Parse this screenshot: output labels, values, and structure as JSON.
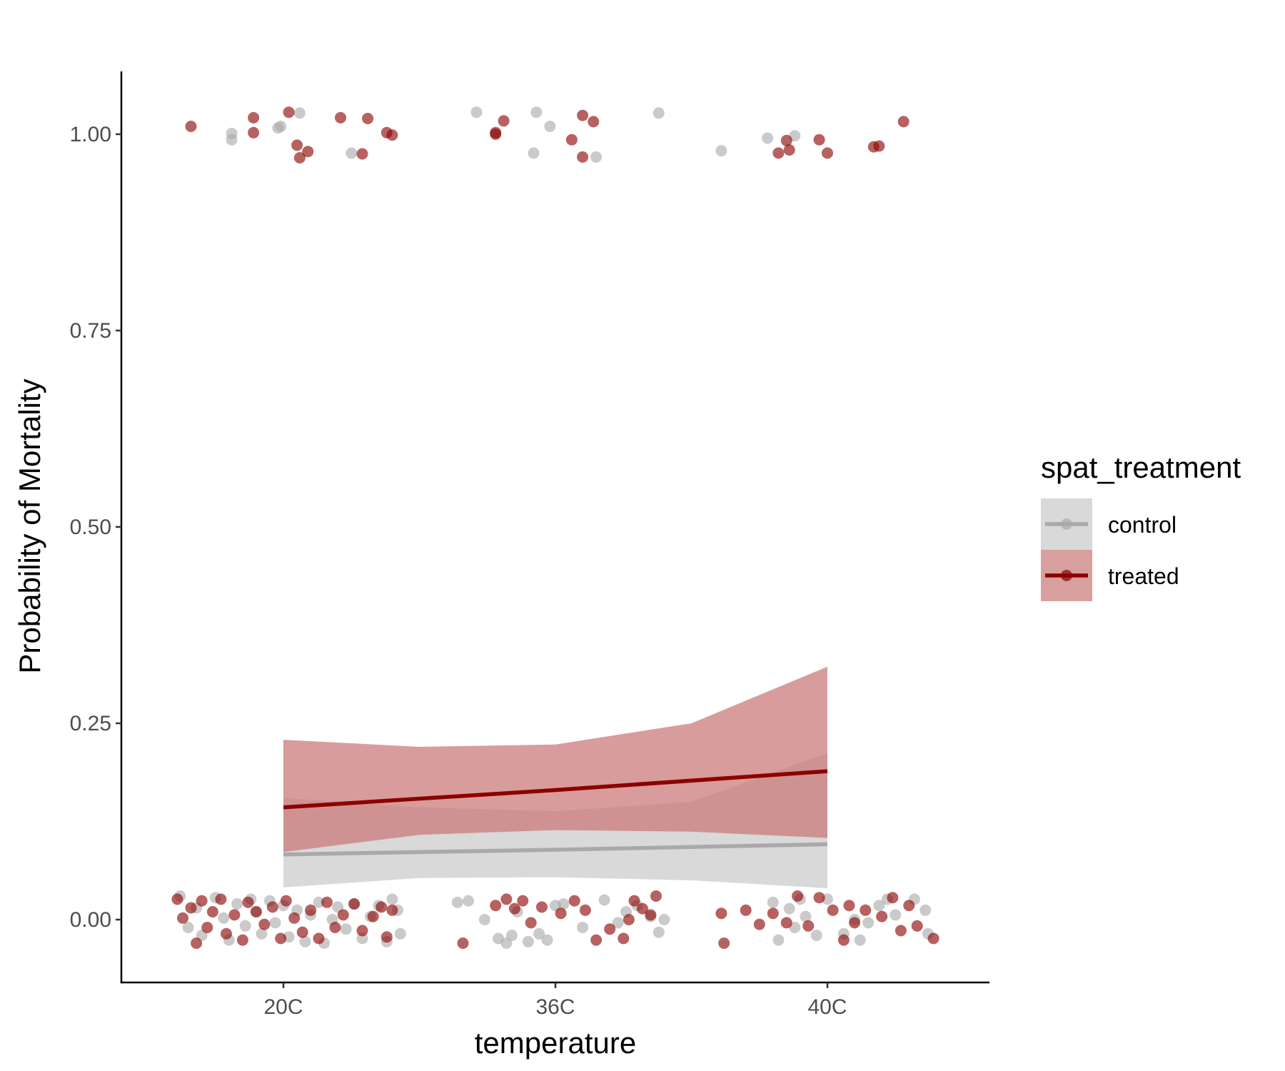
{
  "chart_data": {
    "type": "scatter",
    "xlabel": "temperature",
    "ylabel": "Probability of Mortality",
    "categories": [
      "20C",
      "36C",
      "40C"
    ],
    "ylim": [
      -0.08,
      1.08
    ],
    "yticks": [
      "0.00",
      "0.25",
      "0.50",
      "0.75",
      "1.00"
    ],
    "ytick_values": [
      0,
      0.25,
      0.5,
      0.75,
      1.0
    ],
    "grid": false,
    "legend": {
      "title": "spat_treatment",
      "placement": "right"
    },
    "series": [
      {
        "name": "control",
        "color": "#a9a9a9",
        "ribbon_color": "#d9d9d9",
        "fit": {
          "x": [
            1,
            2,
            3
          ],
          "y": [
            0.083,
            0.089,
            0.096
          ]
        },
        "ribbon": {
          "x": [
            1,
            1.5,
            2,
            2.5,
            3
          ],
          "lower": [
            0.041,
            0.053,
            0.054,
            0.05,
            0.04
          ],
          "upper": [
            0.155,
            0.143,
            0.138,
            0.15,
            0.212
          ]
        },
        "points": [
          {
            "x": 0.81,
            "y": 0.993
          },
          {
            "x": 0.81,
            "y": 1.001
          },
          {
            "x": 0.99,
            "y": 1.01
          },
          {
            "x": 0.98,
            "y": 1.008
          },
          {
            "x": 1.06,
            "y": 1.027
          },
          {
            "x": 1.25,
            "y": 0.976
          },
          {
            "x": 1.71,
            "y": 1.028
          },
          {
            "x": 1.93,
            "y": 1.028
          },
          {
            "x": 1.98,
            "y": 1.01
          },
          {
            "x": 1.92,
            "y": 0.976
          },
          {
            "x": 2.15,
            "y": 0.971
          },
          {
            "x": 2.38,
            "y": 1.027
          },
          {
            "x": 2.61,
            "y": 0.979
          },
          {
            "x": 2.78,
            "y": 0.995
          },
          {
            "x": 2.88,
            "y": 0.998
          },
          {
            "x": 0.62,
            "y": 0.03
          },
          {
            "x": 0.65,
            "y": -0.01
          },
          {
            "x": 0.68,
            "y": 0.015
          },
          {
            "x": 0.7,
            "y": -0.02
          },
          {
            "x": 0.75,
            "y": 0.028
          },
          {
            "x": 0.78,
            "y": 0.002
          },
          {
            "x": 0.8,
            "y": -0.026
          },
          {
            "x": 0.83,
            "y": 0.02
          },
          {
            "x": 0.86,
            "y": -0.008
          },
          {
            "x": 0.88,
            "y": 0.026
          },
          {
            "x": 0.9,
            "y": 0.01
          },
          {
            "x": 0.92,
            "y": -0.018
          },
          {
            "x": 0.95,
            "y": 0.024
          },
          {
            "x": 0.97,
            "y": -0.004
          },
          {
            "x": 1.0,
            "y": 0.018
          },
          {
            "x": 1.02,
            "y": -0.022
          },
          {
            "x": 1.05,
            "y": 0.012
          },
          {
            "x": 1.08,
            "y": -0.028
          },
          {
            "x": 1.1,
            "y": 0.006
          },
          {
            "x": 1.13,
            "y": 0.022
          },
          {
            "x": 1.15,
            "y": -0.03
          },
          {
            "x": 1.18,
            "y": 0.0
          },
          {
            "x": 1.2,
            "y": 0.016
          },
          {
            "x": 1.23,
            "y": -0.012
          },
          {
            "x": 1.26,
            "y": 0.02
          },
          {
            "x": 1.29,
            "y": -0.024
          },
          {
            "x": 1.32,
            "y": 0.004
          },
          {
            "x": 1.35,
            "y": 0.018
          },
          {
            "x": 1.38,
            "y": -0.028
          },
          {
            "x": 1.4,
            "y": 0.026
          },
          {
            "x": 1.42,
            "y": 0.012
          },
          {
            "x": 1.43,
            "y": -0.018
          },
          {
            "x": 1.64,
            "y": 0.022
          },
          {
            "x": 1.68,
            "y": 0.024
          },
          {
            "x": 1.74,
            "y": 0.0
          },
          {
            "x": 1.79,
            "y": -0.024
          },
          {
            "x": 1.82,
            "y": -0.03
          },
          {
            "x": 1.84,
            "y": -0.02
          },
          {
            "x": 1.86,
            "y": 0.01
          },
          {
            "x": 1.9,
            "y": -0.028
          },
          {
            "x": 1.94,
            "y": -0.018
          },
          {
            "x": 1.97,
            "y": -0.026
          },
          {
            "x": 2.0,
            "y": 0.018
          },
          {
            "x": 2.03,
            "y": 0.02
          },
          {
            "x": 2.1,
            "y": -0.01
          },
          {
            "x": 2.18,
            "y": 0.025
          },
          {
            "x": 2.23,
            "y": -0.004
          },
          {
            "x": 2.26,
            "y": 0.01
          },
          {
            "x": 2.3,
            "y": 0.018
          },
          {
            "x": 2.35,
            "y": 0.004
          },
          {
            "x": 2.38,
            "y": -0.016
          },
          {
            "x": 2.4,
            "y": 0.0
          },
          {
            "x": 2.8,
            "y": 0.022
          },
          {
            "x": 2.82,
            "y": -0.026
          },
          {
            "x": 2.86,
            "y": 0.014
          },
          {
            "x": 2.88,
            "y": -0.01
          },
          {
            "x": 2.9,
            "y": 0.026
          },
          {
            "x": 2.92,
            "y": 0.004
          },
          {
            "x": 2.96,
            "y": -0.02
          },
          {
            "x": 3.0,
            "y": 0.026
          },
          {
            "x": 3.06,
            "y": -0.018
          },
          {
            "x": 3.1,
            "y": 0.0
          },
          {
            "x": 3.12,
            "y": -0.026
          },
          {
            "x": 3.15,
            "y": -0.004
          },
          {
            "x": 3.19,
            "y": 0.018
          },
          {
            "x": 3.22,
            "y": 0.026
          },
          {
            "x": 3.25,
            "y": 0.006
          },
          {
            "x": 3.32,
            "y": 0.026
          },
          {
            "x": 3.36,
            "y": 0.012
          },
          {
            "x": 3.37,
            "y": -0.018
          }
        ]
      },
      {
        "name": "treated",
        "color": "#8b0000",
        "ribbon_color": "#c97676",
        "fit": {
          "x": [
            1,
            2,
            3
          ],
          "y": [
            0.143,
            0.165,
            0.189
          ]
        },
        "ribbon": {
          "x": [
            1,
            1.5,
            2,
            2.5,
            3
          ],
          "lower": [
            0.086,
            0.108,
            0.114,
            0.112,
            0.104
          ],
          "upper": [
            0.229,
            0.22,
            0.223,
            0.25,
            0.322
          ]
        },
        "points": [
          {
            "x": 0.66,
            "y": 1.01
          },
          {
            "x": 0.89,
            "y": 1.021
          },
          {
            "x": 0.89,
            "y": 1.002
          },
          {
            "x": 1.02,
            "y": 1.028
          },
          {
            "x": 1.05,
            "y": 0.986
          },
          {
            "x": 1.06,
            "y": 0.97
          },
          {
            "x": 1.09,
            "y": 0.978
          },
          {
            "x": 1.21,
            "y": 1.021
          },
          {
            "x": 1.29,
            "y": 0.975
          },
          {
            "x": 1.31,
            "y": 1.02
          },
          {
            "x": 1.38,
            "y": 1.002
          },
          {
            "x": 1.4,
            "y": 0.999
          },
          {
            "x": 1.78,
            "y": 1.002
          },
          {
            "x": 1.78,
            "y": 1.0
          },
          {
            "x": 1.81,
            "y": 1.017
          },
          {
            "x": 2.06,
            "y": 0.993
          },
          {
            "x": 2.1,
            "y": 1.024
          },
          {
            "x": 2.1,
            "y": 0.971
          },
          {
            "x": 2.14,
            "y": 1.016
          },
          {
            "x": 2.82,
            "y": 0.976
          },
          {
            "x": 2.85,
            "y": 0.992
          },
          {
            "x": 2.86,
            "y": 0.98
          },
          {
            "x": 2.97,
            "y": 0.993
          },
          {
            "x": 3.0,
            "y": 0.976
          },
          {
            "x": 3.17,
            "y": 0.984
          },
          {
            "x": 3.19,
            "y": 0.985
          },
          {
            "x": 3.28,
            "y": 1.016
          },
          {
            "x": 0.61,
            "y": 0.026
          },
          {
            "x": 0.63,
            "y": 0.002
          },
          {
            "x": 0.66,
            "y": 0.015
          },
          {
            "x": 0.68,
            "y": -0.03
          },
          {
            "x": 0.7,
            "y": 0.024
          },
          {
            "x": 0.72,
            "y": -0.01
          },
          {
            "x": 0.74,
            "y": 0.01
          },
          {
            "x": 0.77,
            "y": 0.026
          },
          {
            "x": 0.79,
            "y": -0.018
          },
          {
            "x": 0.82,
            "y": 0.006
          },
          {
            "x": 0.85,
            "y": -0.026
          },
          {
            "x": 0.87,
            "y": 0.022
          },
          {
            "x": 0.9,
            "y": 0.01
          },
          {
            "x": 0.93,
            "y": -0.006
          },
          {
            "x": 0.96,
            "y": 0.016
          },
          {
            "x": 0.99,
            "y": -0.024
          },
          {
            "x": 1.01,
            "y": 0.024
          },
          {
            "x": 1.04,
            "y": 0.002
          },
          {
            "x": 1.07,
            "y": -0.016
          },
          {
            "x": 1.1,
            "y": 0.012
          },
          {
            "x": 1.13,
            "y": -0.024
          },
          {
            "x": 1.16,
            "y": 0.022
          },
          {
            "x": 1.19,
            "y": -0.01
          },
          {
            "x": 1.22,
            "y": 0.006
          },
          {
            "x": 1.26,
            "y": 0.02
          },
          {
            "x": 1.29,
            "y": -0.014
          },
          {
            "x": 1.33,
            "y": 0.004
          },
          {
            "x": 1.36,
            "y": 0.016
          },
          {
            "x": 1.38,
            "y": -0.022
          },
          {
            "x": 1.4,
            "y": 0.012
          },
          {
            "x": 1.66,
            "y": -0.03
          },
          {
            "x": 1.78,
            "y": 0.018
          },
          {
            "x": 1.82,
            "y": 0.026
          },
          {
            "x": 1.85,
            "y": 0.014
          },
          {
            "x": 1.88,
            "y": 0.024
          },
          {
            "x": 1.91,
            "y": -0.004
          },
          {
            "x": 1.95,
            "y": 0.016
          },
          {
            "x": 2.02,
            "y": 0.008
          },
          {
            "x": 2.07,
            "y": 0.024
          },
          {
            "x": 2.11,
            "y": 0.012
          },
          {
            "x": 2.15,
            "y": -0.026
          },
          {
            "x": 2.2,
            "y": -0.012
          },
          {
            "x": 2.25,
            "y": -0.024
          },
          {
            "x": 2.27,
            "y": 0.0
          },
          {
            "x": 2.29,
            "y": 0.024
          },
          {
            "x": 2.32,
            "y": 0.014
          },
          {
            "x": 2.35,
            "y": 0.006
          },
          {
            "x": 2.37,
            "y": 0.03
          },
          {
            "x": 2.61,
            "y": 0.008
          },
          {
            "x": 2.62,
            "y": -0.03
          },
          {
            "x": 2.7,
            "y": 0.012
          },
          {
            "x": 2.75,
            "y": -0.006
          },
          {
            "x": 2.8,
            "y": 0.008
          },
          {
            "x": 2.85,
            "y": -0.004
          },
          {
            "x": 2.89,
            "y": 0.03
          },
          {
            "x": 2.93,
            "y": -0.008
          },
          {
            "x": 2.97,
            "y": 0.028
          },
          {
            "x": 3.02,
            "y": 0.012
          },
          {
            "x": 3.06,
            "y": -0.026
          },
          {
            "x": 3.08,
            "y": 0.018
          },
          {
            "x": 3.1,
            "y": -0.004
          },
          {
            "x": 3.14,
            "y": 0.012
          },
          {
            "x": 3.2,
            "y": 0.004
          },
          {
            "x": 3.24,
            "y": 0.028
          },
          {
            "x": 3.27,
            "y": -0.014
          },
          {
            "x": 3.3,
            "y": 0.018
          },
          {
            "x": 3.33,
            "y": -0.008
          },
          {
            "x": 3.39,
            "y": -0.024
          }
        ]
      }
    ]
  }
}
